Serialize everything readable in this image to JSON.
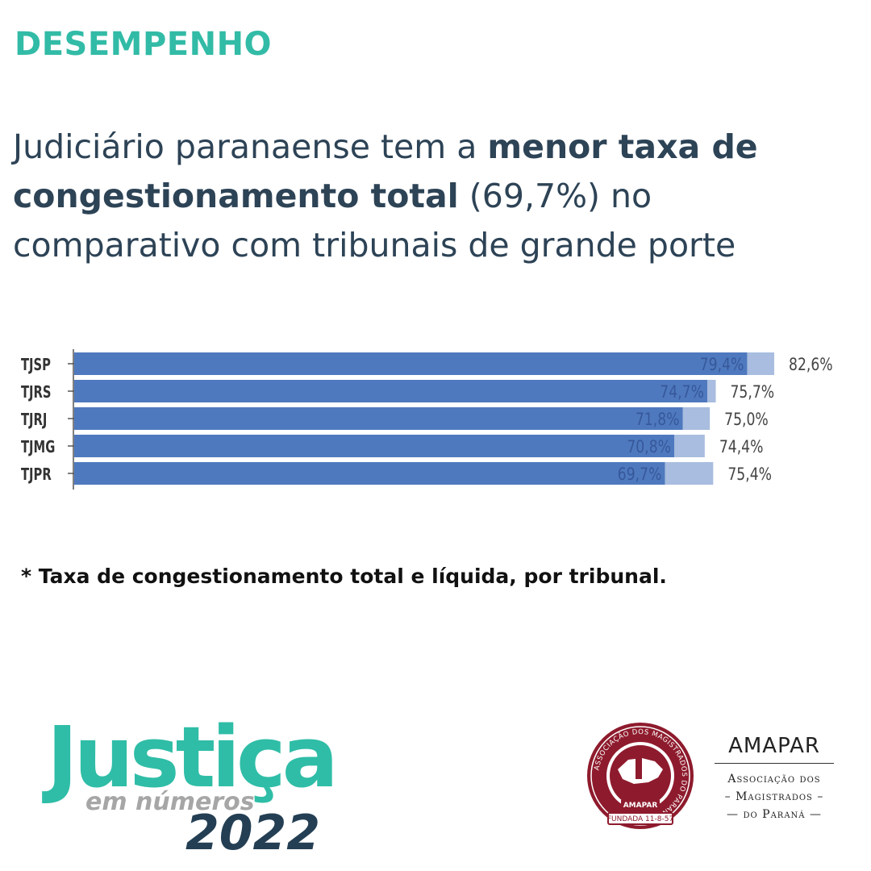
{
  "header": {
    "kicker": "DESEMPENHO",
    "headline": {
      "part1": "Judiciário paranaense tem a ",
      "bold1": "menor taxa de congestionamento total",
      "part2": " (69,7%) no comparativo com tribunais de grande porte"
    }
  },
  "chart_data": {
    "type": "bar",
    "orientation": "horizontal",
    "categories": [
      "TJSP",
      "TJRS",
      "TJRJ",
      "TJMG",
      "TJPR"
    ],
    "series": [
      {
        "values": [
          79.4,
          74.7,
          71.8,
          70.8,
          69.7
        ],
        "labels": [
          "79,4%",
          "74,7%",
          "71,8%",
          "70,8%",
          "69,7%"
        ],
        "color": "#4f79be"
      },
      {
        "values": [
          82.6,
          75.7,
          75.0,
          74.4,
          75.4
        ],
        "labels": [
          "82,6%",
          "75,7%",
          "75,0%",
          "74,4%",
          "75,4%"
        ],
        "color": "#a8bddf"
      }
    ],
    "xlim": [
      0,
      82.6
    ],
    "grid": false,
    "legend": "none"
  },
  "footnote": "* Taxa de congestionamento total e líquida, por tribunal.",
  "brand": {
    "word": "Justiça",
    "sub": "em números",
    "year": "2022"
  },
  "seal": {
    "ring_text": "ASSOCIAÇÃO DOS MAGISTRADOS DO PARANÁ",
    "banner": "AMAPAR",
    "founded": "FUNDADA 11-8-57"
  },
  "org": {
    "name": "AMAPAR",
    "line1": "Associação dos",
    "line2": "– Magistrados –",
    "line3": "— do Paraná —"
  },
  "colors": {
    "accent": "#32bba6",
    "navy": "#2d4356",
    "bar_dark": "#4f79be",
    "bar_light": "#a8bddf",
    "seal_red": "#8e1b2d"
  }
}
